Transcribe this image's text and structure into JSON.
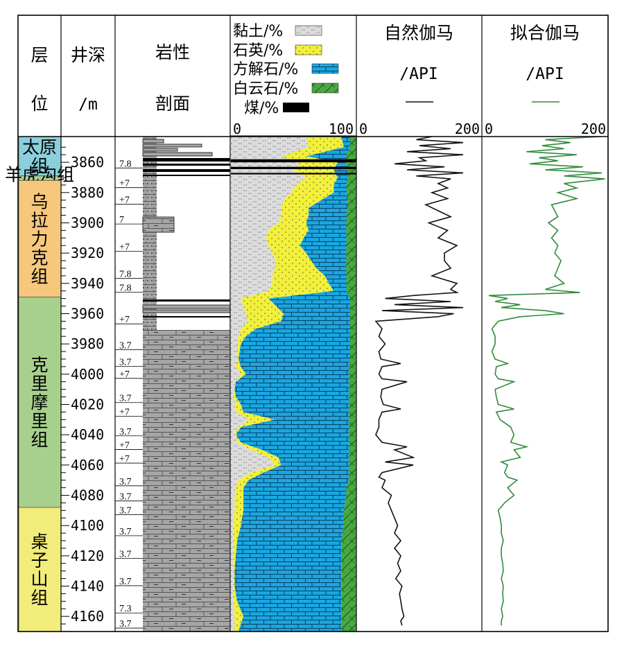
{
  "chart_data": {
    "type": "well-log",
    "depth_axis": {
      "header_1": "井深",
      "header_2": "/m",
      "range": [
        3843,
        4170
      ],
      "ticks": [
        3860,
        3880,
        3900,
        3920,
        3940,
        3960,
        3980,
        4000,
        4020,
        4040,
        4060,
        4080,
        4100,
        4120,
        4140,
        4160
      ]
    },
    "zone_header": {
      "line1": "层",
      "line2": "位"
    },
    "lithology_header": {
      "line1": "岩性",
      "line2": "剖面"
    },
    "zones": [
      {
        "name": "太原组",
        "label": "太原\n组",
        "top": 3843,
        "bottom": 3869,
        "color": "#8ccfdc",
        "font_size": 25
      },
      {
        "name": "羊虎沟组",
        "label": "羊虎沟组",
        "top": 3869,
        "bottom": 3872,
        "color": "#a9cf8f",
        "font_size": 9
      },
      {
        "name": "乌拉力克组",
        "label": "乌\n拉\n力\n克\n组",
        "top": 3872,
        "bottom": 3949,
        "color": "#f7c77c",
        "font_size": 25
      },
      {
        "name": "克里摩里组",
        "label": "克\n里\n摩\n里\n组",
        "top": 3949,
        "bottom": 4088,
        "color": "#a8d08d",
        "font_size": 25
      },
      {
        "name": "桌子山组",
        "label": "桌\n子\n山\n组",
        "top": 4088,
        "bottom": 4170,
        "color": "#f2ec7a",
        "font_size": 25
      }
    ],
    "lithology_codes": [
      {
        "label": "7.8",
        "depth": 3861
      },
      {
        "label": "+7",
        "depth": 3874
      },
      {
        "label": "+7",
        "depth": 3885
      },
      {
        "label": "7",
        "depth": 3898
      },
      {
        "label": "+7",
        "depth": 3916
      },
      {
        "label": "7.8",
        "depth": 3934
      },
      {
        "label": "7.8",
        "depth": 3943
      },
      {
        "label": "+7",
        "depth": 3964
      },
      {
        "label": "3.7",
        "depth": 3981
      },
      {
        "label": "3.7",
        "depth": 3992
      },
      {
        "label": "+7",
        "depth": 4000
      },
      {
        "label": "3.7",
        "depth": 4016
      },
      {
        "label": "+7",
        "depth": 4025
      },
      {
        "label": "3.7",
        "depth": 4038
      },
      {
        "label": "+7",
        "depth": 4047
      },
      {
        "label": "+7",
        "depth": 4056
      },
      {
        "label": "3.7",
        "depth": 4071
      },
      {
        "label": "3.7",
        "depth": 4081
      },
      {
        "label": "3.7",
        "depth": 4090
      },
      {
        "label": "3.7",
        "depth": 4104
      },
      {
        "label": "3.7",
        "depth": 4119
      },
      {
        "label": "3.7",
        "depth": 4137
      },
      {
        "label": "7.3",
        "depth": 4155
      },
      {
        "label": "3.7",
        "depth": 4165
      }
    ],
    "mineral_track": {
      "legend": [
        {
          "name": "黏土/%",
          "color": "#dcdcdc",
          "pattern": "clay"
        },
        {
          "name": "石英/%",
          "color": "#f2f03a",
          "pattern": "quartz"
        },
        {
          "name": "方解石/%",
          "color": "#1aa6df",
          "pattern": "calcite"
        },
        {
          "name": "白云石/%",
          "color": "#4aa843",
          "pattern": "dolomite"
        },
        {
          "name": "煤/%",
          "color": "#000000",
          "pattern": "coal"
        }
      ],
      "x_range": [
        0,
        100
      ],
      "x_tick_labels": [
        "0",
        "100"
      ],
      "boundary_depths": [
        3843,
        3850,
        3856,
        3860,
        3865,
        3870,
        3875,
        3880,
        3885,
        3890,
        3895,
        3900,
        3905,
        3910,
        3915,
        3920,
        3925,
        3930,
        3935,
        3940,
        3945,
        3950,
        3955,
        3960,
        3965,
        3970,
        3975,
        3980,
        3990,
        3995,
        4000,
        4005,
        4010,
        4015,
        4020,
        4025,
        4030,
        4035,
        4040,
        4045,
        4050,
        4055,
        4060,
        4065,
        4070,
        4075,
        4080,
        4090,
        4100,
        4110,
        4120,
        4130,
        4140,
        4150,
        4160,
        4170
      ],
      "clay_cum": [
        60,
        62,
        40,
        55,
        50,
        60,
        52,
        48,
        42,
        40,
        40,
        38,
        30,
        28,
        30,
        33,
        36,
        35,
        33,
        33,
        30,
        8,
        10,
        12,
        14,
        8,
        6,
        5,
        5,
        4,
        8,
        4,
        3,
        2,
        4,
        4,
        15,
        6,
        3,
        5,
        16,
        30,
        35,
        16,
        6,
        4,
        3,
        3,
        2,
        2,
        2,
        2,
        2,
        2,
        3,
        3
      ],
      "quartz_cum": [
        88,
        90,
        60,
        85,
        82,
        85,
        82,
        82,
        72,
        62,
        62,
        60,
        62,
        58,
        55,
        60,
        64,
        68,
        75,
        78,
        82,
        30,
        36,
        42,
        40,
        20,
        12,
        8,
        6,
        8,
        12,
        4,
        3,
        4,
        8,
        10,
        35,
        8,
        4,
        8,
        25,
        38,
        40,
        26,
        14,
        10,
        10,
        10,
        8,
        5,
        4,
        3,
        3,
        5,
        10,
        6
      ],
      "calcite_cum": [
        95,
        95,
        92,
        92,
        93,
        93,
        92,
        92,
        93,
        93,
        92,
        92,
        92,
        92,
        92,
        92,
        92,
        92,
        92,
        92,
        92,
        95,
        95,
        95,
        95,
        95,
        95,
        95,
        95,
        94,
        94,
        94,
        94,
        94,
        94,
        94,
        94,
        94,
        94,
        94,
        94,
        94,
        94,
        94,
        94,
        92,
        92,
        90,
        90,
        88,
        88,
        88,
        88,
        88,
        88,
        88
      ],
      "coal_layers": [
        {
          "top": 3858,
          "bottom": 3860
        },
        {
          "top": 3863,
          "bottom": 3864.5
        },
        {
          "top": 3867,
          "bottom": 3868
        }
      ]
    },
    "gamma_tracks": [
      {
        "title": "自然伽马",
        "unit": "/API",
        "color": "#111111",
        "x_range": [
          0,
          200
        ],
        "x_tick_labels": [
          "0",
          "200"
        ],
        "depth": [
          3843,
          3845,
          3847,
          3849,
          3851,
          3853,
          3855,
          3857,
          3859,
          3861,
          3863,
          3865,
          3867,
          3869,
          3871,
          3874,
          3877,
          3880,
          3884,
          3888,
          3892,
          3896,
          3900,
          3905,
          3910,
          3915,
          3920,
          3925,
          3930,
          3935,
          3940,
          3944,
          3946,
          3948,
          3950,
          3952,
          3954,
          3956,
          3958,
          3960,
          3962,
          3965,
          3970,
          3975,
          3980,
          3985,
          3990,
          3993,
          3995,
          4000,
          4003,
          4005,
          4010,
          4015,
          4020,
          4023,
          4025,
          4030,
          4035,
          4040,
          4045,
          4048,
          4050,
          4055,
          4058,
          4060,
          4065,
          4068,
          4070,
          4075,
          4080,
          4085,
          4090,
          4095,
          4100,
          4105,
          4110,
          4115,
          4120,
          4125,
          4130,
          4135,
          4140,
          4145,
          4150,
          4155,
          4160,
          4163,
          4166
        ],
        "values": [
          120,
          95,
          170,
          100,
          150,
          80,
          170,
          100,
          110,
          60,
          140,
          80,
          170,
          95,
          150,
          130,
          145,
          120,
          145,
          110,
          130,
          150,
          115,
          145,
          130,
          160,
          140,
          140,
          150,
          120,
          160,
          150,
          160,
          90,
          45,
          150,
          60,
          170,
          40,
          155,
          130,
          30,
          40,
          35,
          45,
          35,
          38,
          70,
          40,
          35,
          40,
          80,
          40,
          38,
          42,
          70,
          40,
          35,
          35,
          30,
          40,
          80,
          60,
          90,
          45,
          90,
          40,
          35,
          45,
          40,
          55,
          50,
          55,
          60,
          65,
          60,
          70,
          60,
          70,
          65,
          70,
          62,
          72,
          68,
          70,
          72,
          75,
          70,
          72
        ]
      },
      {
        "title": "拟合伽马",
        "unit": "/API",
        "color": "#2e8b3a",
        "x_range": [
          0,
          200
        ],
        "x_tick_labels": [
          "0",
          "200"
        ],
        "depth": [
          3843,
          3845,
          3847,
          3849,
          3851,
          3853,
          3855,
          3857,
          3859,
          3861,
          3863,
          3865,
          3867,
          3869,
          3871,
          3874,
          3877,
          3880,
          3884,
          3888,
          3892,
          3896,
          3900,
          3905,
          3910,
          3915,
          3920,
          3925,
          3930,
          3935,
          3940,
          3944,
          3946,
          3948,
          3950,
          3952,
          3954,
          3956,
          3958,
          3960,
          3962,
          3965,
          3970,
          3975,
          3980,
          3985,
          3990,
          3993,
          3995,
          4000,
          4003,
          4005,
          4010,
          4015,
          4020,
          4023,
          4025,
          4030,
          4035,
          4040,
          4045,
          4048,
          4050,
          4055,
          4058,
          4060,
          4065,
          4068,
          4070,
          4075,
          4080,
          4085,
          4090,
          4095,
          4100,
          4105,
          4110,
          4115,
          4120,
          4125,
          4130,
          4135,
          4140,
          4145,
          4150,
          4155,
          4160,
          4163,
          4166
        ],
        "values": [
          190,
          100,
          140,
          95,
          130,
          70,
          150,
          90,
          120,
          75,
          160,
          100,
          190,
          130,
          195,
          130,
          150,
          120,
          150,
          110,
          115,
          120,
          105,
          120,
          110,
          120,
          115,
          125,
          120,
          115,
          130,
          100,
          155,
          10,
          40,
          20,
          60,
          30,
          100,
          130,
          60,
          25,
          15,
          20,
          20,
          15,
          20,
          40,
          22,
          20,
          25,
          50,
          20,
          22,
          25,
          50,
          22,
          28,
          45,
          50,
          45,
          70,
          50,
          60,
          30,
          40,
          35,
          40,
          55,
          40,
          50,
          35,
          25,
          28,
          30,
          30,
          33,
          30,
          30,
          32,
          33,
          30,
          33,
          32,
          33,
          30,
          32,
          30,
          30
        ]
      }
    ]
  }
}
